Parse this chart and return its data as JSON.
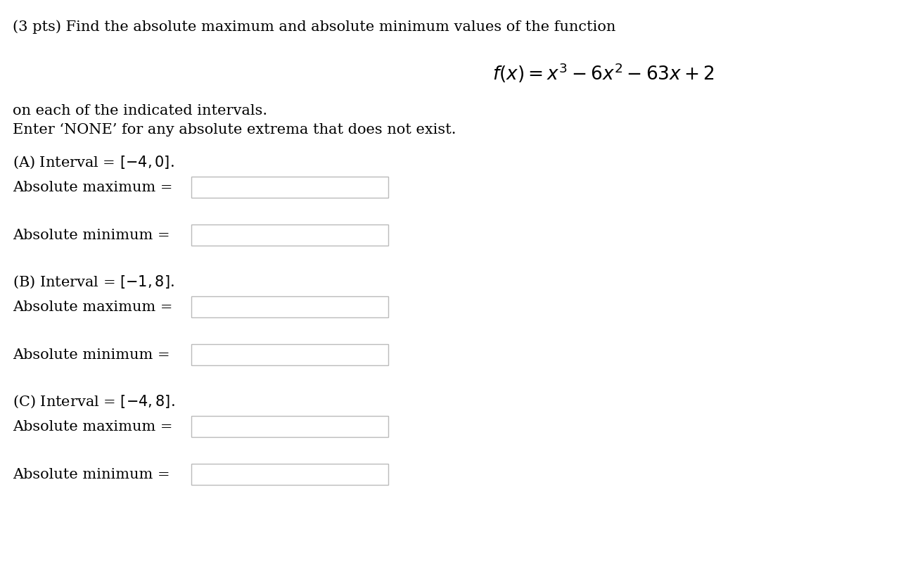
{
  "background_color": "#ffffff",
  "title_text": "(3 pts) Find the absolute maximum and absolute minimum values of the function",
  "subtitle1": "on each of the indicated intervals.",
  "subtitle2": "Enter ‘NONE’ for any absolute extrema that does not exist.",
  "section_A_interval": "(A) Interval = $[-4, 0]$.",
  "section_B_interval": "(B) Interval = $[-1, 8]$.",
  "section_C_interval": "(C) Interval = $[-4, 8]$.",
  "abs_max_label": "Absolute maximum = ",
  "abs_min_label": "Absolute minimum = ",
  "formula_latex": "$f(x) = x^3 - 6x^2 - 63x + 2$",
  "font_size_main": 15,
  "font_size_formula": 19,
  "font_size_section": 15,
  "text_color": "#000000",
  "box_edge_color": "#bbbbbb",
  "box_face_color": "#ffffff",
  "fig_width": 13.08,
  "fig_height": 8.28,
  "dpi": 100
}
